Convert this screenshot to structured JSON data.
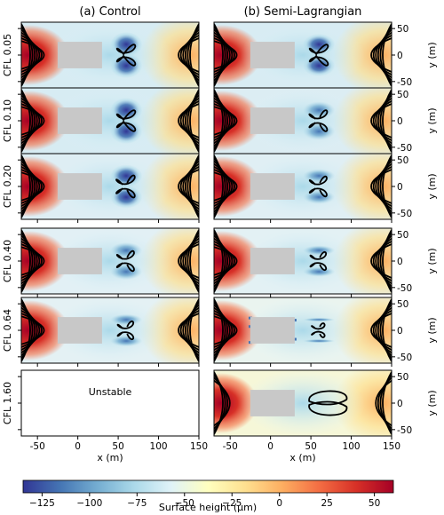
{
  "columns": [
    {
      "title": "(a) Control"
    },
    {
      "title": "(b) Semi-Lagrangian"
    }
  ],
  "rows": [
    {
      "label": "CFL 0.05",
      "control_stable": true
    },
    {
      "label": "CFL 0.10",
      "control_stable": true
    },
    {
      "label": "CFL 0.20",
      "control_stable": true
    },
    {
      "label": "CFL 0.40",
      "control_stable": true
    },
    {
      "label": "CFL 0.64",
      "control_stable": true
    },
    {
      "label": "CFL 1.60",
      "control_stable": false
    }
  ],
  "unstable_text": "Unstable",
  "chart_data": {
    "type": "heatmap",
    "xlabel": "x (m)",
    "ylabel": "y (m)",
    "xlim": [
      -70,
      150
    ],
    "ylim": [
      -62,
      62
    ],
    "xticks": [
      -50,
      0,
      50,
      100,
      150
    ],
    "yticks": [
      -50,
      0,
      50
    ],
    "obstacle": {
      "x": [
        -25,
        30
      ],
      "y": [
        -25,
        25
      ]
    },
    "colorbar": {
      "label": "Surface height (μm)",
      "range": [
        -135,
        60
      ],
      "ticks": [
        -125,
        -100,
        -75,
        -50,
        -25,
        0,
        25,
        50
      ],
      "colors": [
        "#313695",
        "#4575b4",
        "#74add1",
        "#abd9e9",
        "#e0f3f8",
        "#ffffbf",
        "#fee090",
        "#fdae61",
        "#f46d43",
        "#d73027",
        "#a50026"
      ]
    }
  }
}
